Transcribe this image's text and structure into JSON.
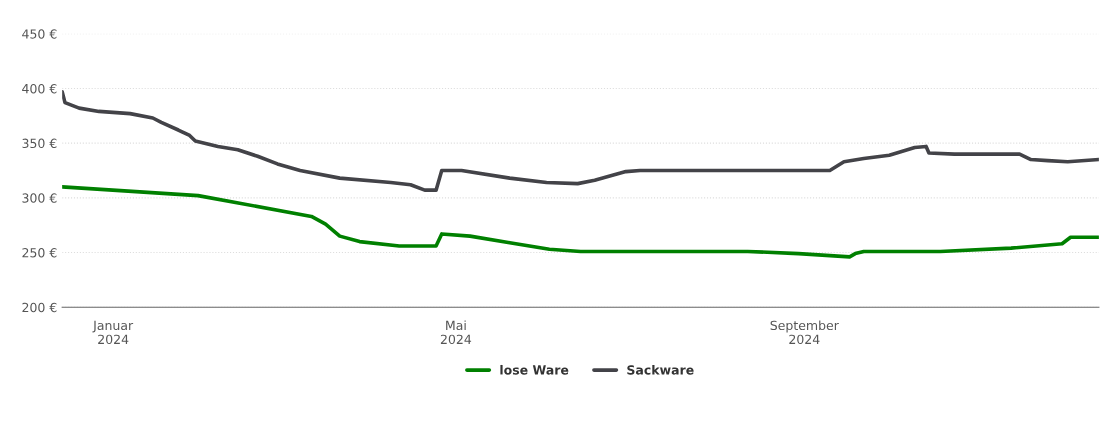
{
  "chart_data": {
    "type": "line",
    "xlim": [
      "2023-12-14",
      "2024-12-14"
    ],
    "xticks": [
      {
        "value": "2024-01-01",
        "label": "Januar\n2024"
      },
      {
        "value": "2024-05-01",
        "label": "Mai\n2024"
      },
      {
        "value": "2024-09-01",
        "label": "September\n2024"
      }
    ],
    "ylim": [
      200,
      450
    ],
    "yticks": [
      {
        "value": 200,
        "label": "200 €"
      },
      {
        "value": 250,
        "label": "250 €"
      },
      {
        "value": 300,
        "label": "300 €"
      },
      {
        "value": 350,
        "label": "350 €"
      },
      {
        "value": 400,
        "label": "400 €"
      },
      {
        "value": 450,
        "label": "450 €"
      }
    ],
    "grid": "y",
    "legend": "bottom",
    "marker": "none",
    "line_style": "solid",
    "series": [
      {
        "name": "lose Ware",
        "color": "#008000",
        "x": [
          "2023-12-14",
          "2024-01-31",
          "2024-03-11",
          "2024-03-16",
          "2024-03-21",
          "2024-03-28",
          "2024-04-11",
          "2024-04-24",
          "2024-04-26",
          "2024-05-06",
          "2024-05-20",
          "2024-06-03",
          "2024-06-14",
          "2024-08-12",
          "2024-08-30",
          "2024-09-17",
          "2024-09-19",
          "2024-09-22",
          "2024-10-19",
          "2024-11-13",
          "2024-12-01",
          "2024-12-04",
          "2024-12-14"
        ],
        "values": [
          310,
          302,
          283,
          276,
          265,
          260,
          256,
          256,
          267,
          265,
          259,
          253,
          251,
          251,
          249,
          246,
          249,
          251,
          251,
          254,
          258,
          264,
          264
        ]
      },
      {
        "name": "Sackware",
        "color": "#434348",
        "x": [
          "2023-12-14",
          "2023-12-15",
          "2023-12-20",
          "2023-12-27",
          "2024-01-07",
          "2024-01-15",
          "2024-01-18",
          "2024-01-24",
          "2024-01-28",
          "2024-01-30",
          "2024-02-07",
          "2024-02-14",
          "2024-02-21",
          "2024-02-28",
          "2024-03-07",
          "2024-03-21",
          "2024-04-08",
          "2024-04-15",
          "2024-04-20",
          "2024-04-24",
          "2024-04-26",
          "2024-05-03",
          "2024-05-20",
          "2024-06-02",
          "2024-06-13",
          "2024-06-19",
          "2024-06-30",
          "2024-07-05",
          "2024-09-10",
          "2024-09-15",
          "2024-09-22",
          "2024-10-01",
          "2024-10-10",
          "2024-10-14",
          "2024-10-15",
          "2024-10-24",
          "2024-11-16",
          "2024-11-20",
          "2024-11-26",
          "2024-12-03",
          "2024-12-14"
        ],
        "values": [
          397,
          387,
          382,
          379,
          377,
          373,
          369,
          362,
          357,
          352,
          347,
          344,
          338,
          331,
          325,
          318,
          314,
          312,
          307,
          307,
          325,
          325,
          318,
          314,
          313,
          316,
          324,
          325,
          325,
          333,
          336,
          339,
          346,
          347,
          341,
          340,
          340,
          335,
          334,
          333,
          335
        ]
      }
    ]
  }
}
